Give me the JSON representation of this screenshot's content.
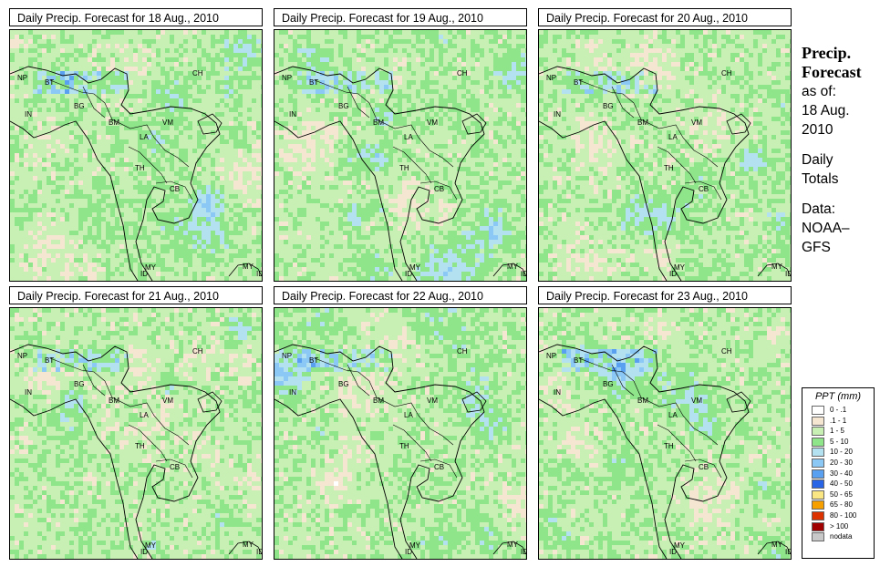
{
  "panels": [
    {
      "title": "Daily Precip. Forecast for  18 Aug., 2010"
    },
    {
      "title": "Daily Precip. Forecast for  19 Aug., 2010"
    },
    {
      "title": "Daily Precip. Forecast for  20 Aug., 2010"
    },
    {
      "title": "Daily Precip. Forecast for  21 Aug., 2010"
    },
    {
      "title": "Daily Precip. Forecast for  22 Aug., 2010"
    },
    {
      "title": "Daily Precip. Forecast for  23 Aug., 2010"
    }
  ],
  "map_labels": [
    "NP",
    "BT",
    "BG",
    "IN",
    "CH",
    "BM",
    "VM",
    "LA",
    "TH",
    "CB",
    "MY",
    "ID",
    "MY",
    "ID"
  ],
  "side": {
    "title_line1": "Precip.",
    "title_line2": "Forecast",
    "asof": "as of:",
    "date_line1": "18 Aug.",
    "date_line2": "2010",
    "daily_line1": "Daily",
    "daily_line2": "Totals",
    "data_line1": "Data:",
    "data_line2": "NOAA–",
    "data_line3": "GFS"
  },
  "legend": {
    "title": "PPT (mm)",
    "items": [
      {
        "label": "0 - .1",
        "color": "#ffffff"
      },
      {
        "label": ".1 - 1",
        "color": "#f5e6d2"
      },
      {
        "label": "1 - 5",
        "color": "#c8f0b4"
      },
      {
        "label": "5 - 10",
        "color": "#8fe68a"
      },
      {
        "label": "10 - 20",
        "color": "#b4e1f0"
      },
      {
        "label": "20 - 30",
        "color": "#8cc8f5"
      },
      {
        "label": "30 - 40",
        "color": "#5aa0f0"
      },
      {
        "label": "40 - 50",
        "color": "#2864e6"
      },
      {
        "label": "50 - 65",
        "color": "#fae682"
      },
      {
        "label": "65 - 80",
        "color": "#f5a000"
      },
      {
        "label": "80 - 100",
        "color": "#dc3200"
      },
      {
        "label": "> 100",
        "color": "#a00000"
      },
      {
        "label": "nodata",
        "color": "#c8c8c8"
      }
    ]
  }
}
